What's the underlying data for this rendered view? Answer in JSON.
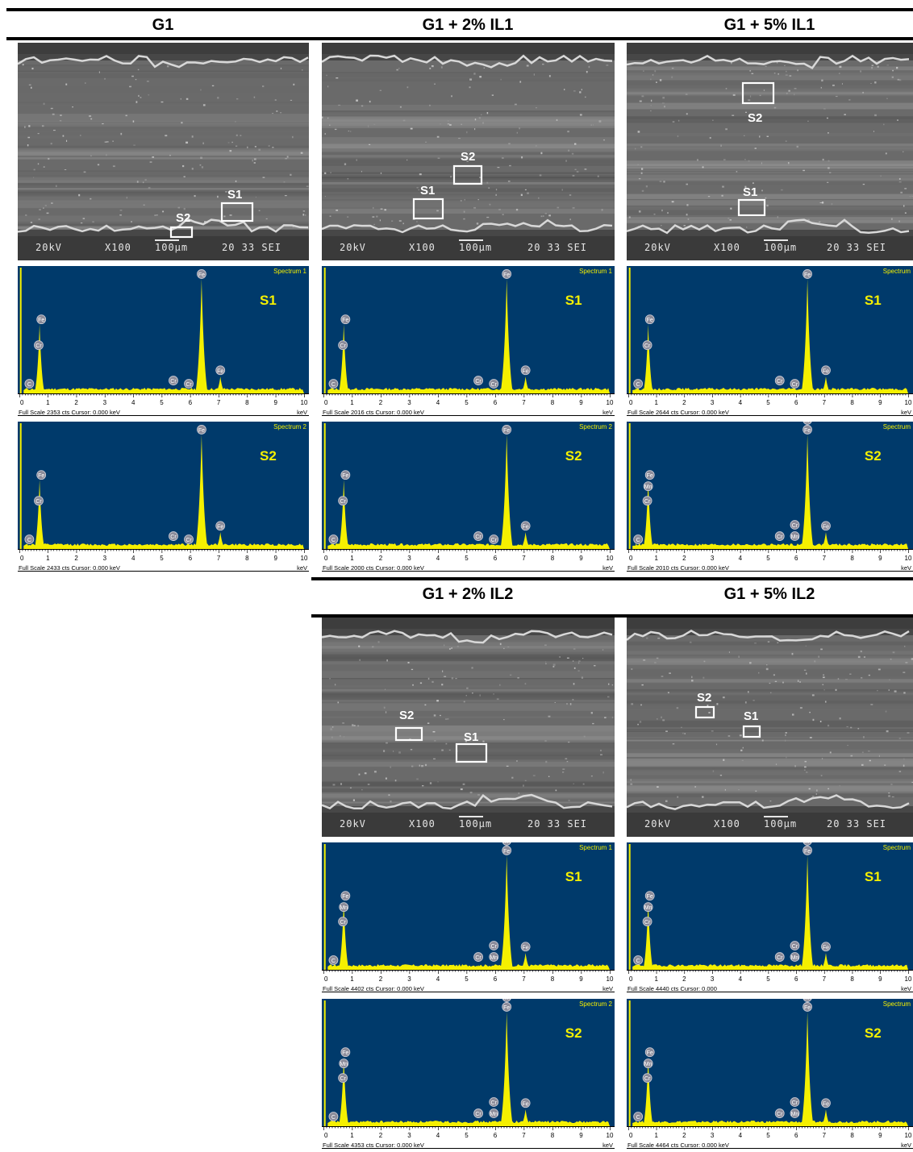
{
  "columns": [
    {
      "title": "G1"
    },
    {
      "title": "G1 + 2% IL1"
    },
    {
      "title": "G1 + 5% IL1"
    },
    {
      "title": "G1 + 2% IL2"
    },
    {
      "title": "G1 + 5% IL2"
    }
  ],
  "sem": [
    {
      "footer_kv": "20kV",
      "footer_mag": "X100",
      "footer_scale": "100μm",
      "footer_id": "20 33 SEI",
      "boxes": [
        {
          "label": "S2"
        },
        {
          "label": "S1"
        }
      ]
    },
    {
      "footer_kv": "20kV",
      "footer_mag": "X100",
      "footer_scale": "100μm",
      "footer_id": "20 33 SEI",
      "boxes": [
        {
          "label": "S2"
        },
        {
          "label": "S1"
        }
      ]
    },
    {
      "footer_kv": "20kV",
      "footer_mag": "X100",
      "footer_scale": "100μm",
      "footer_id": "20 33 SEI",
      "boxes": [
        {
          "label": "S2"
        },
        {
          "label": "S1"
        }
      ]
    },
    {
      "footer_kv": "20kV",
      "footer_mag": "X100",
      "footer_scale": "100μm",
      "footer_id": "20 33 SEI",
      "boxes": [
        {
          "label": "S2"
        },
        {
          "label": "S1"
        }
      ]
    },
    {
      "footer_kv": "20kV",
      "footer_mag": "X100",
      "footer_scale": "100μm",
      "footer_id": "20 33 SEI",
      "boxes": [
        {
          "label": "S2"
        },
        {
          "label": "S1"
        }
      ]
    }
  ],
  "spectra": [
    {
      "corner": "Spectrum 1",
      "site": "S1",
      "full_scale": "Full Scale 2353 cts  Cursor: 0.000 keV",
      "mn": false
    },
    {
      "corner": "Spectrum 2",
      "site": "S2",
      "full_scale": "Full Scale 2433 cts  Cursor: 0.000 keV",
      "mn": false
    },
    {
      "corner": "Spectrum 1",
      "site": "S1",
      "full_scale": "Full Scale 2016 cts  Cursor: 0.000 keV",
      "mn": false
    },
    {
      "corner": "Spectrum 2",
      "site": "S2",
      "full_scale": "Full Scale 2000 cts  Cursor: 0.000 keV",
      "mn": false
    },
    {
      "corner": "Spectrum",
      "site": "S1",
      "full_scale": "Full Scale 2644 cts  Cursor: 0.000 keV",
      "mn": false
    },
    {
      "corner": "Spectrum",
      "site": "S2",
      "full_scale": "Full Scale 2010 cts  Cursor: 0.000 keV",
      "mn": true
    },
    {
      "corner": "Spectrum 1",
      "site": "S1",
      "full_scale": "Full Scale 4402 cts  Cursor: 0.000 keV",
      "mn": true
    },
    {
      "corner": "Spectrum 2",
      "site": "S2",
      "full_scale": "Full Scale 4353 cts  Cursor: 0.000 keV",
      "mn": true
    },
    {
      "corner": "Spectrum",
      "site": "S1",
      "full_scale": "Full Scale 4440 cts  Cursor: 0.000",
      "mn": true
    },
    {
      "corner": "Spectrum",
      "site": "S2",
      "full_scale": "Full Scale 4464 cts  Cursor: 0.000 keV",
      "mn": true
    }
  ],
  "axis": {
    "ticks": [
      "0",
      "1",
      "2",
      "3",
      "4",
      "5",
      "6",
      "7",
      "8",
      "9",
      "10"
    ],
    "unit": "keV"
  },
  "peak_labels": {
    "c": "C",
    "fe": "Fe",
    "cr": "Cr",
    "mn": "Mn"
  },
  "colors": {
    "spectrum_bg": "#003a6b",
    "peak": "#f5f000",
    "site_label": "#f5f000",
    "sem_box": "#ffffff"
  }
}
